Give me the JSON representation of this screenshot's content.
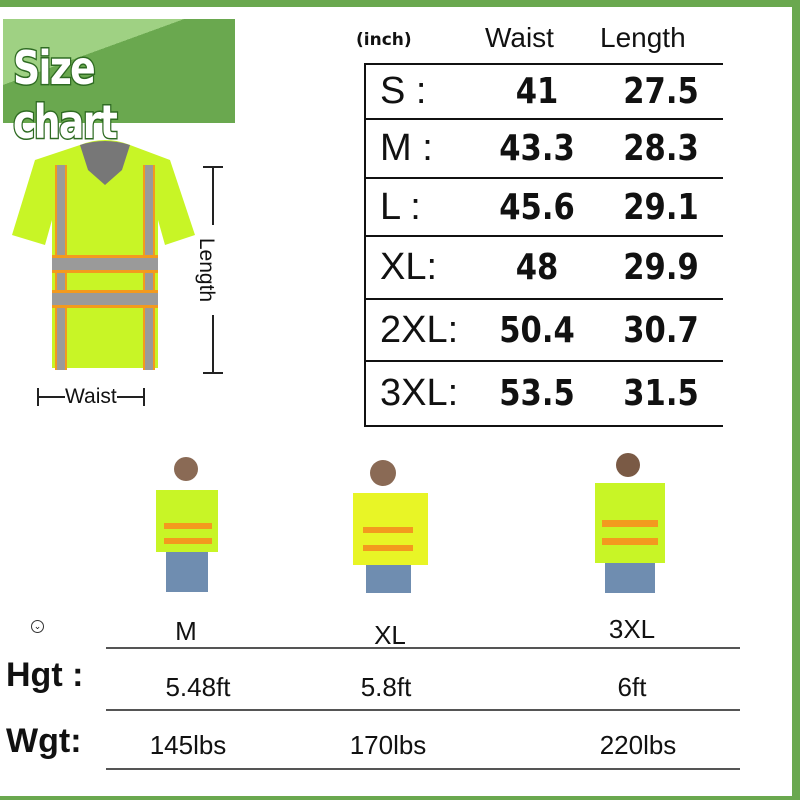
{
  "banner": {
    "title": "Size chart"
  },
  "diagram": {
    "length_label": "Length",
    "waist_label": "Waist"
  },
  "size_table": {
    "unit": "(inch)",
    "headers": [
      "Waist",
      "Length"
    ],
    "rows": [
      {
        "size": "S",
        "waist": "41",
        "length": "27.5"
      },
      {
        "size": "M",
        "waist": "43.3",
        "length": "28.3"
      },
      {
        "size": "L",
        "waist": "45.6",
        "length": "29.1"
      },
      {
        "size": "XL",
        "waist": "48",
        "length": "29.9"
      },
      {
        "size": "2XL",
        "waist": "50.4",
        "length": "30.7"
      },
      {
        "size": "3XL",
        "waist": "53.5",
        "length": "31.5"
      }
    ]
  },
  "models": {
    "icon": "chevron-down-circle-icon",
    "sizes": [
      "M",
      "XL",
      "3XL"
    ],
    "height_label": "Hgt",
    "weight_label": "Wgt",
    "heights": [
      "5.48ft",
      "5.8ft",
      "6ft"
    ],
    "weights": [
      "145lbs",
      "170lbs",
      "220lbs"
    ]
  },
  "colors": {
    "accent": "#6aa84f",
    "shirt": "#c8f526",
    "stripe": "#9a9a9a",
    "trim": "#f39a1e"
  }
}
